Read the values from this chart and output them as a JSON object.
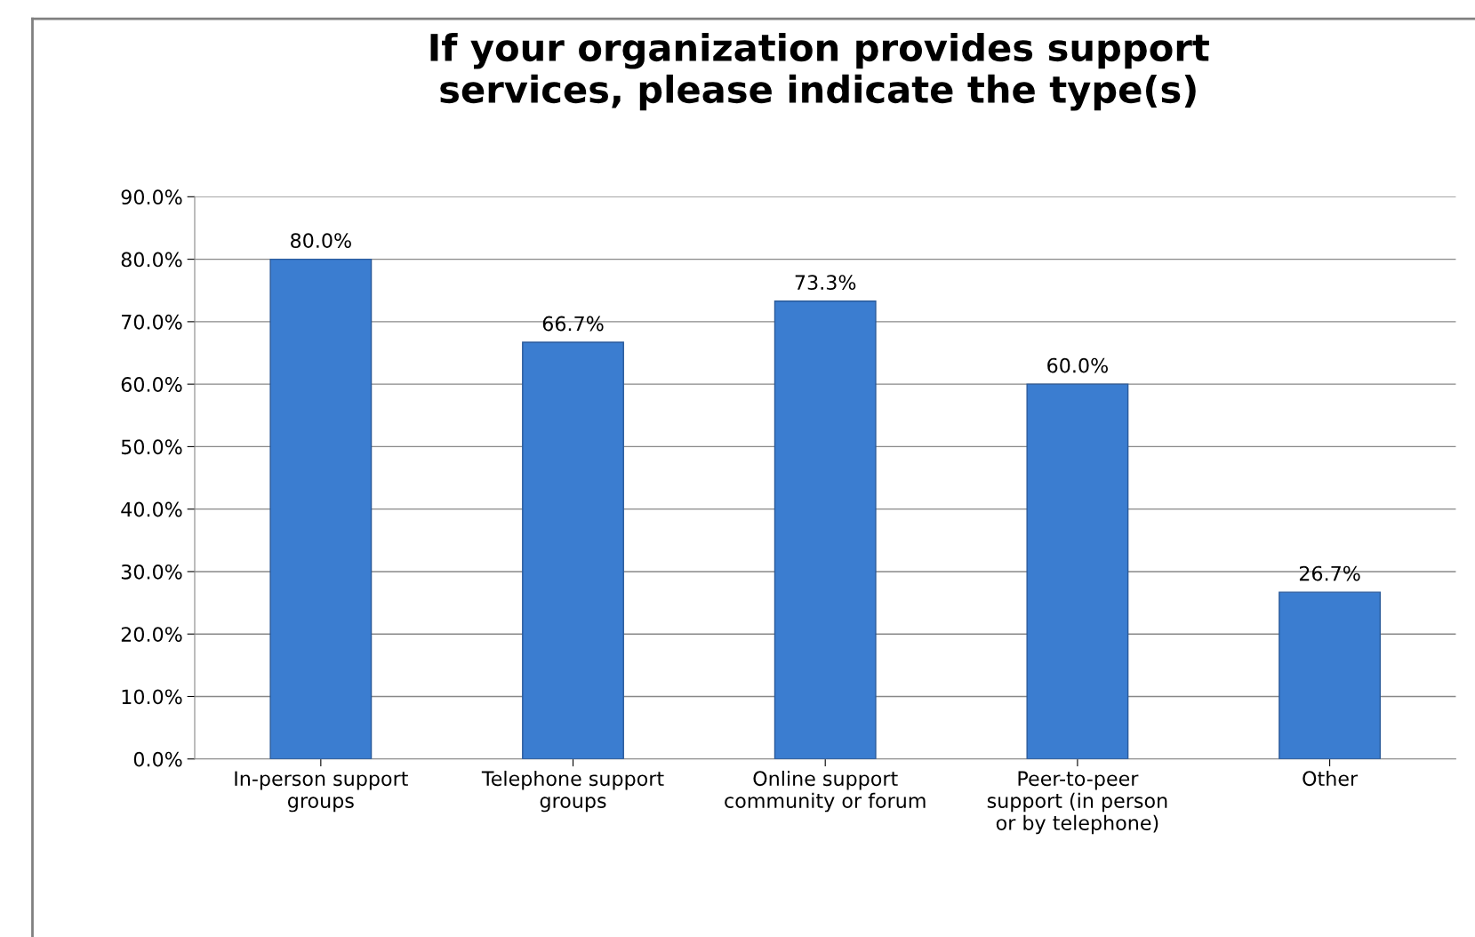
{
  "chart_data": {
    "type": "bar",
    "title": "If your organization provides support services, please indicate the type(s)",
    "categories": [
      "In-person support groups",
      "Telephone support groups",
      "Online support community or forum",
      "Peer-to-peer support (in person or by telephone)",
      "Other"
    ],
    "values": [
      80.0,
      66.7,
      73.3,
      60.0,
      26.7
    ],
    "value_labels": [
      "80.0%",
      "66.7%",
      "73.3%",
      "60.0%",
      "26.7%"
    ],
    "color": "#3b7dd0",
    "ylim": [
      0,
      90
    ],
    "yticks": [
      {
        "value": 0,
        "label": "0.0%"
      },
      {
        "value": 10,
        "label": "10.0%"
      },
      {
        "value": 20,
        "label": "20.0%"
      },
      {
        "value": 30,
        "label": "30.0%"
      },
      {
        "value": 40,
        "label": "40.0%"
      },
      {
        "value": 50,
        "label": "50.0%"
      },
      {
        "value": 60,
        "label": "60.0%"
      },
      {
        "value": 70,
        "label": "70.0%"
      },
      {
        "value": 80,
        "label": "80.0%"
      },
      {
        "value": 90,
        "label": "90.0%"
      }
    ],
    "grid": "y",
    "legend": false
  }
}
